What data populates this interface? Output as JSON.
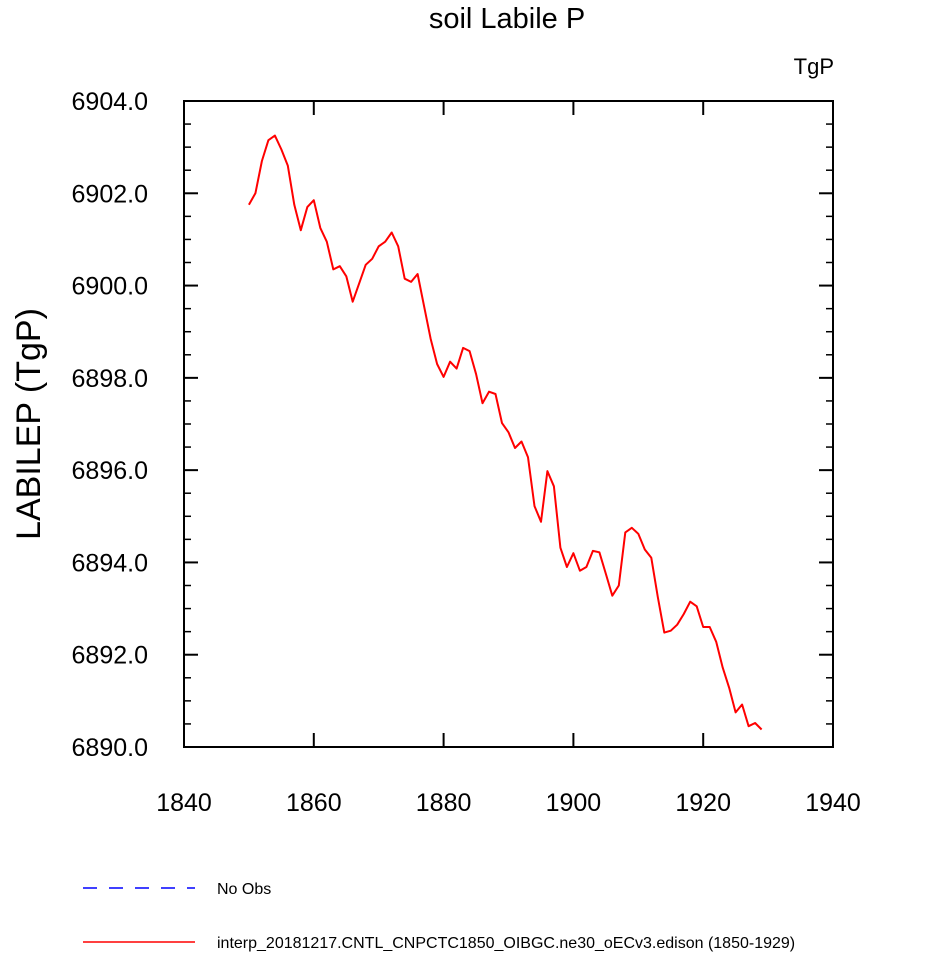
{
  "chart_data": {
    "type": "line",
    "title": "soil Labile P",
    "units_label": "TgP",
    "ylabel": "LABILEP  (TgP)",
    "xlabel": "",
    "xlim": [
      1840,
      1940
    ],
    "ylim": [
      6890.0,
      6904.0
    ],
    "x_ticks": [
      1840,
      1860,
      1880,
      1900,
      1920,
      1940
    ],
    "x_tick_labels": [
      "1840",
      "1860",
      "1880",
      "1900",
      "1920",
      "1940"
    ],
    "y_ticks": [
      6890.0,
      6892.0,
      6894.0,
      6896.0,
      6898.0,
      6900.0,
      6902.0,
      6904.0
    ],
    "y_tick_labels": [
      "6890.0",
      "6892.0",
      "6894.0",
      "6896.0",
      "6898.0",
      "6900.0",
      "6902.0",
      "6904.0"
    ],
    "grid": false,
    "legend_position": "bottom",
    "series": [
      {
        "name": "No Obs",
        "color": "#0000ff",
        "style": "dashed",
        "x": [],
        "values": []
      },
      {
        "name": "interp_20181217.CNTL_CNPCTC1850_OIBGC.ne30_oECv3.edison (1850-1929)",
        "color": "#ff0000",
        "style": "solid",
        "x": [
          1850,
          1851,
          1852,
          1853,
          1854,
          1855,
          1856,
          1857,
          1858,
          1859,
          1860,
          1861,
          1862,
          1863,
          1864,
          1865,
          1866,
          1867,
          1868,
          1869,
          1870,
          1871,
          1872,
          1873,
          1874,
          1875,
          1876,
          1877,
          1878,
          1879,
          1880,
          1881,
          1882,
          1883,
          1884,
          1885,
          1886,
          1887,
          1888,
          1889,
          1890,
          1891,
          1892,
          1893,
          1894,
          1895,
          1896,
          1897,
          1898,
          1899,
          1900,
          1901,
          1902,
          1903,
          1904,
          1905,
          1906,
          1907,
          1908,
          1909,
          1910,
          1911,
          1912,
          1913,
          1914,
          1915,
          1916,
          1917,
          1918,
          1919,
          1920,
          1921,
          1922,
          1923,
          1924,
          1925,
          1926,
          1927,
          1928,
          1929
        ],
        "values": [
          6901.75,
          6902.0,
          6902.7,
          6903.15,
          6903.25,
          6902.95,
          6902.6,
          6901.75,
          6901.2,
          6901.7,
          6901.85,
          6901.25,
          6900.95,
          6900.35,
          6900.42,
          6900.2,
          6899.65,
          6900.05,
          6900.45,
          6900.58,
          6900.85,
          6900.95,
          6901.15,
          6900.85,
          6900.15,
          6900.08,
          6900.25,
          6899.55,
          6898.85,
          6898.3,
          6898.02,
          6898.35,
          6898.2,
          6898.65,
          6898.58,
          6898.08,
          6897.45,
          6897.7,
          6897.65,
          6897.02,
          6896.82,
          6896.48,
          6896.62,
          6896.28,
          6895.22,
          6894.88,
          6895.98,
          6895.65,
          6894.32,
          6893.9,
          6894.2,
          6893.82,
          6893.9,
          6894.25,
          6894.22,
          6893.75,
          6893.28,
          6893.5,
          6894.65,
          6894.75,
          6894.62,
          6894.28,
          6894.1,
          6893.25,
          6892.48,
          6892.52,
          6892.65,
          6892.88,
          6893.15,
          6893.05,
          6892.6,
          6892.6,
          6892.28,
          6891.72,
          6891.28,
          6890.75,
          6890.92,
          6890.45,
          6890.52,
          6890.38
        ]
      }
    ]
  }
}
